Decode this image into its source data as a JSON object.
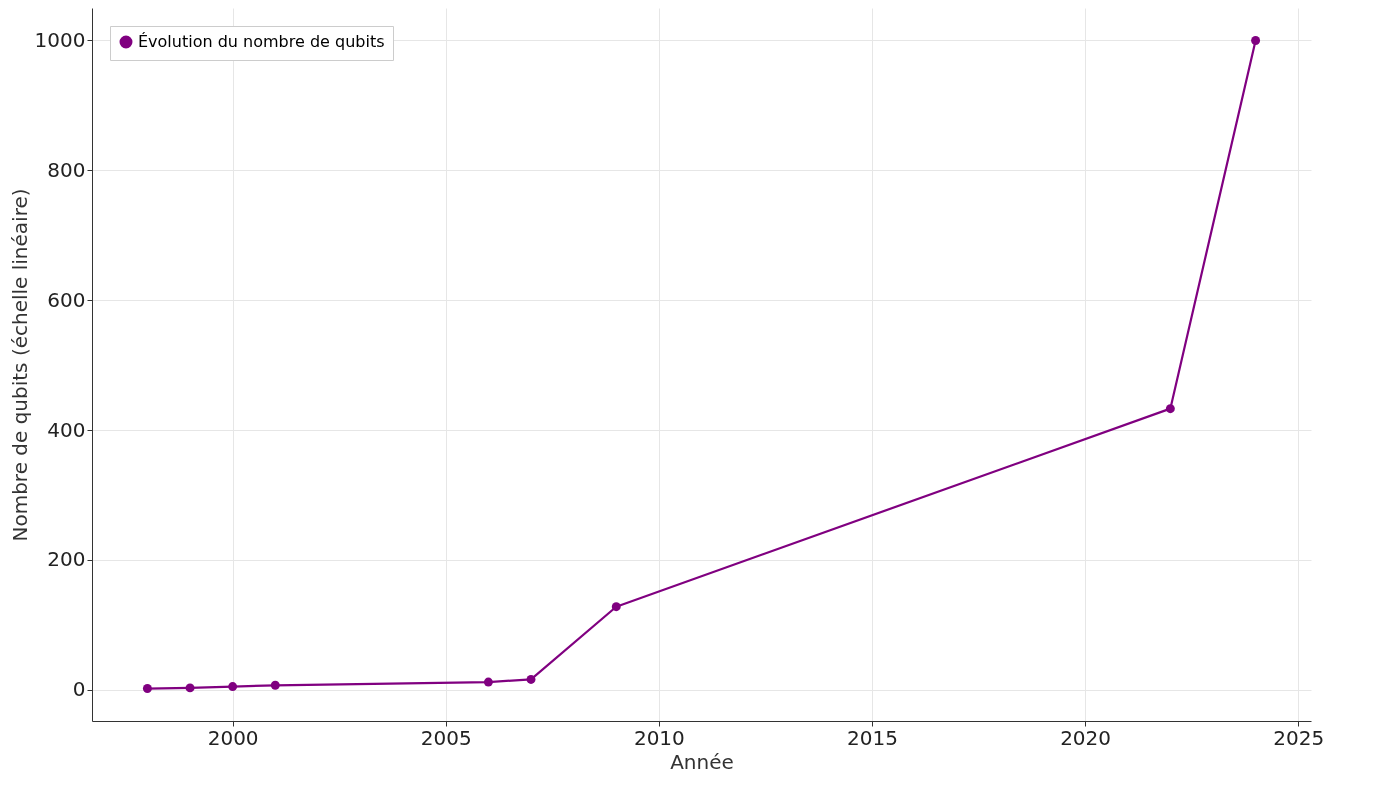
{
  "chart_data": {
    "type": "line",
    "xlabel": "Année",
    "ylabel": "Nombre de qubits (échelle linéaire)",
    "x": [
      1998,
      1999,
      2000,
      2001,
      2006,
      2007,
      2009,
      2022,
      2024
    ],
    "series": [
      {
        "name": "Évolution du nombre de qubits",
        "color": "#800080",
        "values": [
          2,
          3,
          5,
          7,
          12,
          16,
          128,
          433,
          1000
        ]
      }
    ],
    "xlim": [
      1996.7,
      2025.3
    ],
    "xticks": [
      2000,
      2005,
      2010,
      2015,
      2020,
      2025
    ],
    "ylim": [
      -48,
      1050
    ],
    "yticks": [
      0,
      200,
      400,
      600,
      800,
      1000
    ],
    "grid": true,
    "legend": "top left",
    "marker": "circle",
    "line_style": "solid"
  }
}
